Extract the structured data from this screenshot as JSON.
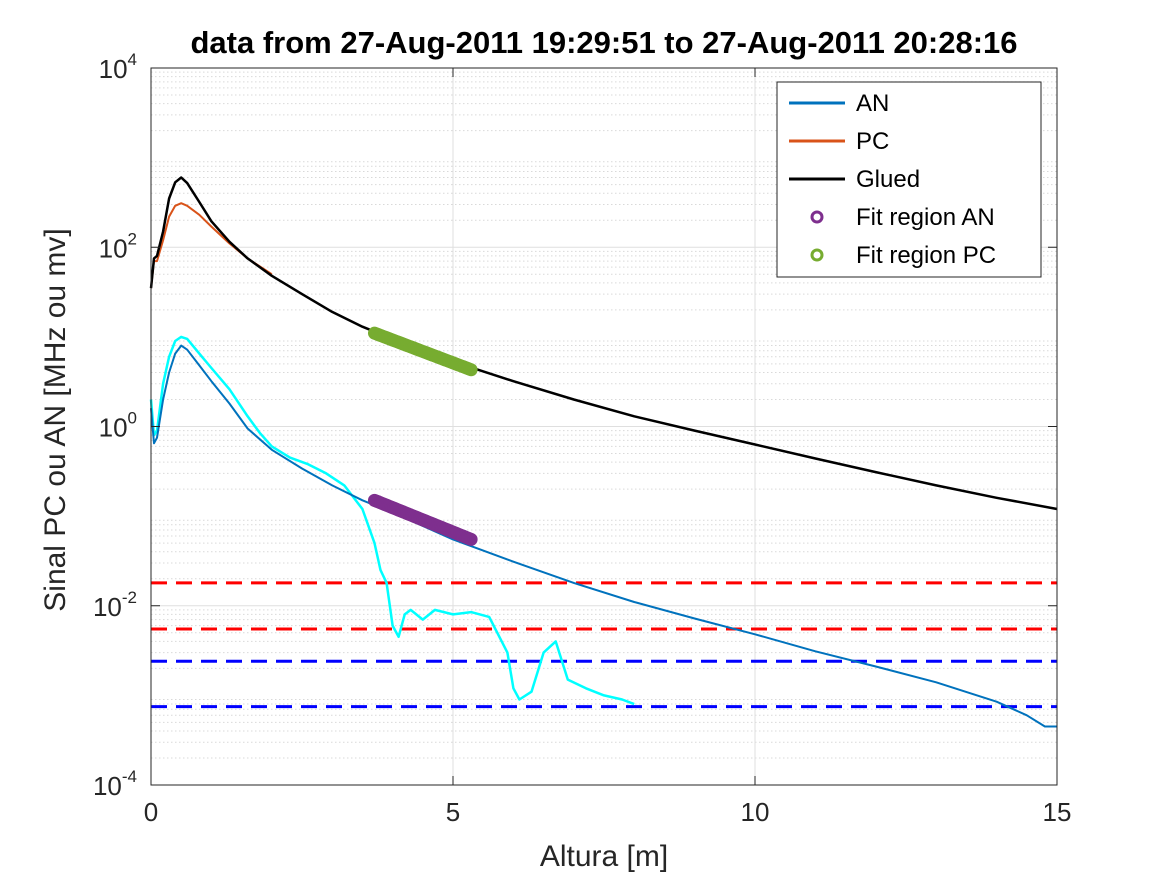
{
  "chart_data": {
    "type": "line",
    "title": "data from 27-Aug-2011 19:29:51 to 27-Aug-2011 20:28:16",
    "xlabel": "Altura [m]",
    "ylabel": "Sinal PC ou AN [MHz ou mv]",
    "xlim": [
      0,
      15
    ],
    "ylim": [
      0.0001,
      10000
    ],
    "yscale": "log",
    "grid": true,
    "minor_grid": true,
    "legend_position": "top-right",
    "x_ticks": [
      {
        "value": 0,
        "label": "0"
      },
      {
        "value": 5,
        "label": "5"
      },
      {
        "value": 10,
        "label": "10"
      },
      {
        "value": 15,
        "label": "15"
      }
    ],
    "y_ticks": [
      {
        "value": 0.0001,
        "base": "10",
        "exp": "-4"
      },
      {
        "value": 0.01,
        "base": "10",
        "exp": "-2"
      },
      {
        "value": 1,
        "base": "10",
        "exp": "0"
      },
      {
        "value": 100,
        "base": "10",
        "exp": "2"
      },
      {
        "value": 10000,
        "base": "10",
        "exp": "4"
      }
    ],
    "series": [
      {
        "name": "AN",
        "color": "#0072BD",
        "style": "line",
        "in_legend": true,
        "x": [
          0,
          0.05,
          0.1,
          0.2,
          0.3,
          0.4,
          0.5,
          0.6,
          0.8,
          1.0,
          1.3,
          1.6,
          2.0,
          2.5,
          3.0,
          3.5,
          4.0,
          5.0,
          6.0,
          7.0,
          8.0,
          9.0,
          10.0,
          11.0,
          12.0,
          13.0,
          14.0,
          14.5,
          14.8,
          15.0
        ],
        "y": [
          1.6,
          0.65,
          0.75,
          2.0,
          4.0,
          6.5,
          8.0,
          7.2,
          4.8,
          3.2,
          1.8,
          0.95,
          0.55,
          0.34,
          0.22,
          0.15,
          0.11,
          0.055,
          0.031,
          0.018,
          0.011,
          0.0072,
          0.0048,
          0.0031,
          0.0021,
          0.0014,
          0.00085,
          0.0006,
          0.00045,
          0.00045
        ]
      },
      {
        "name": "PC",
        "color": "#D95319",
        "style": "line",
        "in_legend": true,
        "x": [
          0,
          0.05,
          0.1,
          0.2,
          0.3,
          0.4,
          0.5,
          0.6,
          0.8,
          1.0,
          1.3,
          1.6,
          2.0
        ],
        "y": [
          35,
          70,
          70,
          120,
          220,
          290,
          310,
          290,
          230,
          170,
          110,
          75,
          50
        ]
      },
      {
        "name": "Glued",
        "color": "#000000",
        "style": "line",
        "in_legend": true,
        "x": [
          0,
          0.05,
          0.1,
          0.2,
          0.3,
          0.4,
          0.5,
          0.6,
          0.8,
          1.0,
          1.3,
          1.6,
          2.0,
          2.5,
          3.0,
          3.5,
          4.0,
          5.0,
          6.0,
          7.0,
          8.0,
          9.0,
          10.0,
          11.0,
          12.0,
          13.0,
          14.0,
          15.0
        ],
        "y": [
          35,
          75,
          80,
          150,
          350,
          530,
          600,
          520,
          320,
          195,
          115,
          75,
          48,
          30,
          19,
          13,
          9.5,
          5.3,
          3.2,
          2.0,
          1.3,
          0.9,
          0.63,
          0.44,
          0.31,
          0.22,
          0.16,
          0.12
        ]
      },
      {
        "name": "Fit region AN",
        "color": "#7E2F8E",
        "style": "markers",
        "in_legend": true,
        "x": [
          3.7,
          5.3
        ],
        "y": [
          0.15,
          0.055
        ]
      },
      {
        "name": "Fit region PC",
        "color": "#77AC30",
        "style": "markers",
        "in_legend": true,
        "x": [
          3.7,
          5.3
        ],
        "y": [
          11,
          4.3
        ]
      },
      {
        "name": "",
        "color": "#00FFFF",
        "style": "line",
        "in_legend": false,
        "x": [
          0,
          0.05,
          0.1,
          0.2,
          0.3,
          0.4,
          0.5,
          0.6,
          0.8,
          1.0,
          1.3,
          1.6,
          1.8,
          2.0,
          2.3,
          2.6,
          2.9,
          3.2,
          3.5,
          3.7,
          3.8,
          3.9,
          4.0,
          4.1,
          4.2,
          4.3,
          4.5,
          4.7,
          5.0,
          5.3,
          5.6,
          5.9,
          6.0,
          6.1,
          6.3,
          6.5,
          6.7,
          6.9,
          7.2,
          7.5,
          7.8,
          8.0
        ],
        "y": [
          2.0,
          0.8,
          0.9,
          3.0,
          6.0,
          9.0,
          10.0,
          9.5,
          6.5,
          4.5,
          2.6,
          1.3,
          0.85,
          0.6,
          0.45,
          0.38,
          0.3,
          0.22,
          0.12,
          0.05,
          0.025,
          0.018,
          0.006,
          0.0045,
          0.008,
          0.009,
          0.007,
          0.009,
          0.008,
          0.0085,
          0.0075,
          0.003,
          0.0012,
          0.0009,
          0.0011,
          0.003,
          0.004,
          0.0015,
          0.0012,
          0.001,
          0.0009,
          0.0008
        ]
      }
    ],
    "reference_lines": [
      {
        "y": 0.018,
        "color": "#FF0000",
        "style": "dashed"
      },
      {
        "y": 0.0055,
        "color": "#FF0000",
        "style": "dashed"
      },
      {
        "y": 0.0024,
        "color": "#0000FF",
        "style": "dashed"
      },
      {
        "y": 0.00075,
        "color": "#0000FF",
        "style": "dashed"
      }
    ]
  }
}
